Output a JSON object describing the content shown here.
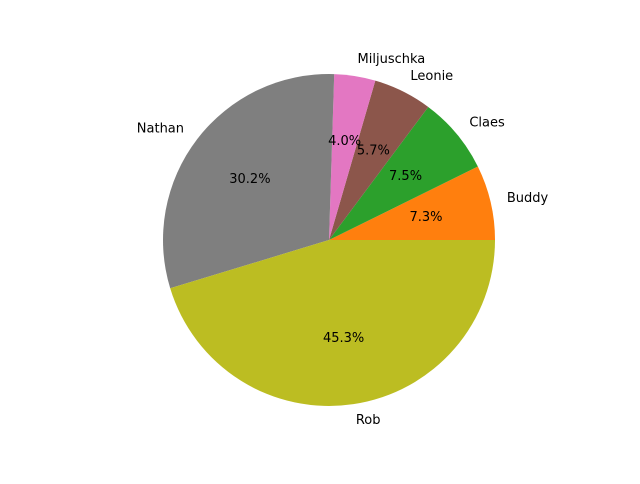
{
  "chart_data": {
    "type": "pie",
    "title": "",
    "start_angle_deg": 0,
    "direction": "counterclockwise",
    "slices": [
      {
        "label": "Buddy",
        "value": 7.3,
        "pct_label": "7.3%",
        "color": "#ff7f0e"
      },
      {
        "label": "Claes",
        "value": 7.5,
        "pct_label": "7.5%",
        "color": "#2ca02c"
      },
      {
        "label": "Leonie",
        "value": 5.7,
        "pct_label": "5.7%",
        "color": "#8c564b"
      },
      {
        "label": "Miljuschka",
        "value": 4.0,
        "pct_label": "4.0%",
        "color": "#e377c2"
      },
      {
        "label": "Nathan",
        "value": 30.2,
        "pct_label": "30.2%",
        "color": "#7f7f7f"
      },
      {
        "label": "Rob",
        "value": 45.3,
        "pct_label": "45.3%",
        "color": "#bcbd22"
      }
    ]
  }
}
